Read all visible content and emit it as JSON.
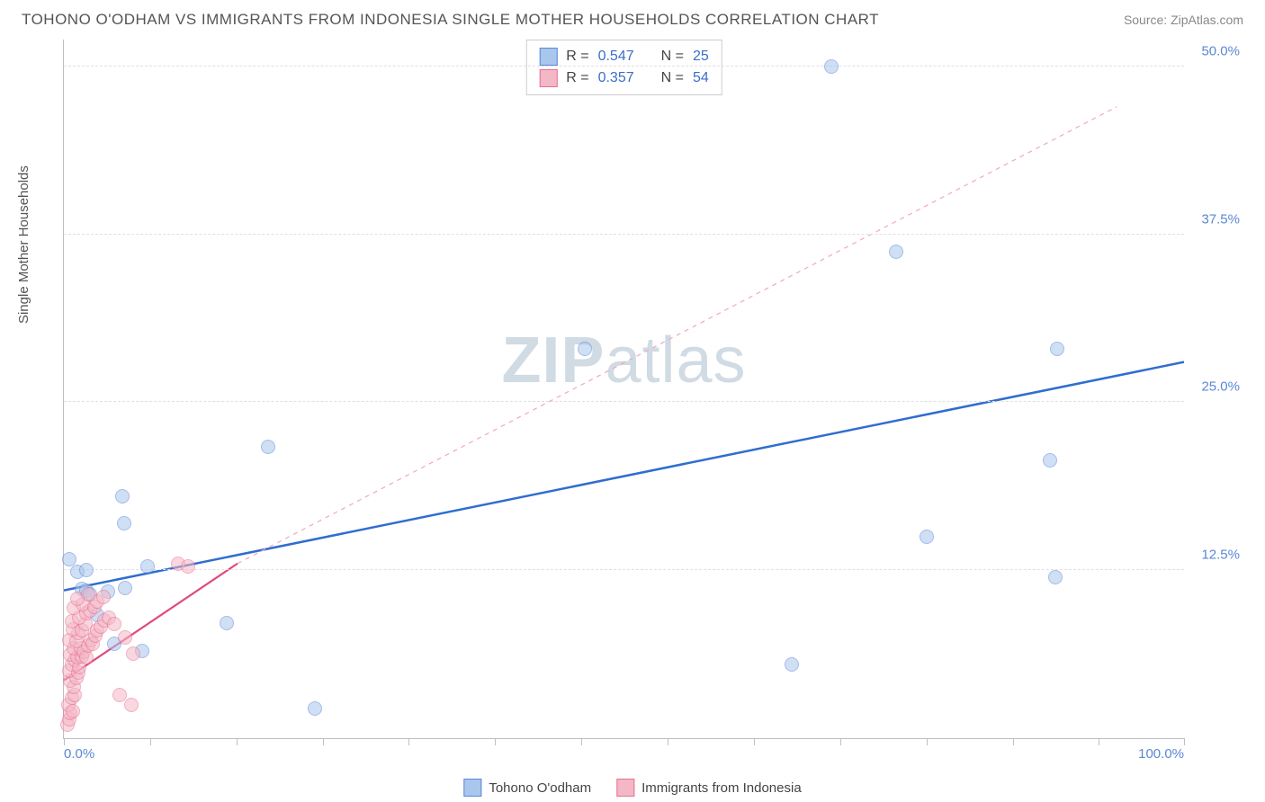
{
  "title": "TOHONO O'ODHAM VS IMMIGRANTS FROM INDONESIA SINGLE MOTHER HOUSEHOLDS CORRELATION CHART",
  "source": "Source: ZipAtlas.com",
  "ylabel": "Single Mother Households",
  "watermark_a": "ZIP",
  "watermark_b": "atlas",
  "chart": {
    "type": "scatter",
    "background_color": "#ffffff",
    "grid_color": "#e0e0e0",
    "axis_color": "#bfbfbf",
    "xlim": [
      0,
      100
    ],
    "ylim": [
      0,
      52
    ],
    "xticks_minor": [
      0,
      7.7,
      15.4,
      23.1,
      30.8,
      38.5,
      46.2,
      53.9,
      61.6,
      69.3,
      77.0,
      84.7,
      92.4,
      100
    ],
    "xticks_label": [
      {
        "x": 0,
        "label": "0.0%"
      },
      {
        "x": 100,
        "label": "100.0%"
      }
    ],
    "yticks": [
      {
        "y": 12.5,
        "label": "12.5%"
      },
      {
        "y": 25.0,
        "label": "25.0%"
      },
      {
        "y": 37.5,
        "label": "37.5%"
      },
      {
        "y": 50.0,
        "label": "50.0%"
      }
    ],
    "point_radius": 8,
    "point_opacity": 0.55,
    "series": [
      {
        "name": "Tohono O'odham",
        "color_fill": "#a9c6ec",
        "color_stroke": "#5b87d6",
        "R": "0.547",
        "N": "25",
        "trend": {
          "x1": 0,
          "y1": 11.0,
          "x2": 100,
          "y2": 28.0,
          "stroke": "#2f6dd0",
          "width": 2.5,
          "dash": "none"
        },
        "trend_ext": null,
        "points": [
          {
            "x": 0.5,
            "y": 13.3
          },
          {
            "x": 1.2,
            "y": 12.4
          },
          {
            "x": 1.6,
            "y": 11.1
          },
          {
            "x": 2.0,
            "y": 11.0
          },
          {
            "x": 2.3,
            "y": 10.7
          },
          {
            "x": 2.0,
            "y": 12.5
          },
          {
            "x": 3.0,
            "y": 9.2
          },
          {
            "x": 3.9,
            "y": 10.9
          },
          {
            "x": 4.5,
            "y": 7.0
          },
          {
            "x": 5.2,
            "y": 18.0
          },
          {
            "x": 5.4,
            "y": 16.0
          },
          {
            "x": 7.0,
            "y": 6.5
          },
          {
            "x": 7.5,
            "y": 12.8
          },
          {
            "x": 14.5,
            "y": 8.6
          },
          {
            "x": 18.2,
            "y": 21.7
          },
          {
            "x": 22.4,
            "y": 2.2
          },
          {
            "x": 46.5,
            "y": 29.0
          },
          {
            "x": 65.0,
            "y": 5.5
          },
          {
            "x": 68.5,
            "y": 50.0
          },
          {
            "x": 74.3,
            "y": 36.2
          },
          {
            "x": 77.0,
            "y": 15.0
          },
          {
            "x": 88.0,
            "y": 20.7
          },
          {
            "x": 88.5,
            "y": 12.0
          },
          {
            "x": 88.7,
            "y": 29.0
          },
          {
            "x": 5.5,
            "y": 11.2
          }
        ]
      },
      {
        "name": "Immigrants from Indonesia",
        "color_fill": "#f4b7c6",
        "color_stroke": "#e86f93",
        "R": "0.357",
        "N": "54",
        "trend": {
          "x1": 0,
          "y1": 4.3,
          "x2": 15.5,
          "y2": 13.0,
          "stroke": "#e04a7a",
          "width": 2.2,
          "dash": "none"
        },
        "trend_ext": {
          "x1": 15.5,
          "y1": 13.0,
          "x2": 94,
          "y2": 47.0,
          "stroke": "#f2a7bd",
          "width": 1.2,
          "dash": "5,5"
        },
        "points": [
          {
            "x": 0.3,
            "y": 1.0
          },
          {
            "x": 0.5,
            "y": 1.4
          },
          {
            "x": 0.6,
            "y": 1.9
          },
          {
            "x": 0.4,
            "y": 2.5
          },
          {
            "x": 0.8,
            "y": 2.0
          },
          {
            "x": 0.7,
            "y": 3.0
          },
          {
            "x": 1.0,
            "y": 3.2
          },
          {
            "x": 0.9,
            "y": 3.8
          },
          {
            "x": 0.6,
            "y": 4.3
          },
          {
            "x": 1.1,
            "y": 4.5
          },
          {
            "x": 0.5,
            "y": 5.0
          },
          {
            "x": 1.3,
            "y": 4.9
          },
          {
            "x": 0.7,
            "y": 5.5
          },
          {
            "x": 1.0,
            "y": 5.8
          },
          {
            "x": 1.4,
            "y": 5.3
          },
          {
            "x": 0.6,
            "y": 6.2
          },
          {
            "x": 1.2,
            "y": 6.0
          },
          {
            "x": 1.6,
            "y": 6.1
          },
          {
            "x": 0.9,
            "y": 6.7
          },
          {
            "x": 1.5,
            "y": 6.7
          },
          {
            "x": 0.5,
            "y": 7.3
          },
          {
            "x": 1.8,
            "y": 6.4
          },
          {
            "x": 1.1,
            "y": 7.2
          },
          {
            "x": 2.0,
            "y": 6.0
          },
          {
            "x": 1.3,
            "y": 7.8
          },
          {
            "x": 0.8,
            "y": 8.1
          },
          {
            "x": 2.2,
            "y": 6.9
          },
          {
            "x": 1.6,
            "y": 8.0
          },
          {
            "x": 2.4,
            "y": 7.3
          },
          {
            "x": 0.7,
            "y": 8.7
          },
          {
            "x": 1.9,
            "y": 8.5
          },
          {
            "x": 2.6,
            "y": 7.0
          },
          {
            "x": 1.4,
            "y": 9.0
          },
          {
            "x": 2.8,
            "y": 7.6
          },
          {
            "x": 2.0,
            "y": 9.3
          },
          {
            "x": 3.0,
            "y": 8.0
          },
          {
            "x": 0.9,
            "y": 9.7
          },
          {
            "x": 2.3,
            "y": 9.5
          },
          {
            "x": 3.3,
            "y": 8.3
          },
          {
            "x": 1.7,
            "y": 10.0
          },
          {
            "x": 2.7,
            "y": 9.8
          },
          {
            "x": 3.6,
            "y": 8.8
          },
          {
            "x": 1.2,
            "y": 10.4
          },
          {
            "x": 3.0,
            "y": 10.2
          },
          {
            "x": 4.0,
            "y": 9.0
          },
          {
            "x": 2.2,
            "y": 10.7
          },
          {
            "x": 3.5,
            "y": 10.5
          },
          {
            "x": 4.5,
            "y": 8.5
          },
          {
            "x": 5.5,
            "y": 7.5
          },
          {
            "x": 6.2,
            "y": 6.3
          },
          {
            "x": 5.0,
            "y": 3.2
          },
          {
            "x": 6.0,
            "y": 2.5
          },
          {
            "x": 10.2,
            "y": 13.0
          },
          {
            "x": 11.1,
            "y": 12.8
          }
        ]
      }
    ]
  },
  "corr_legend_labels": {
    "R": "R =",
    "N": "N ="
  },
  "bottom_legend": [
    "Tohono O'odham",
    "Immigrants from Indonesia"
  ]
}
